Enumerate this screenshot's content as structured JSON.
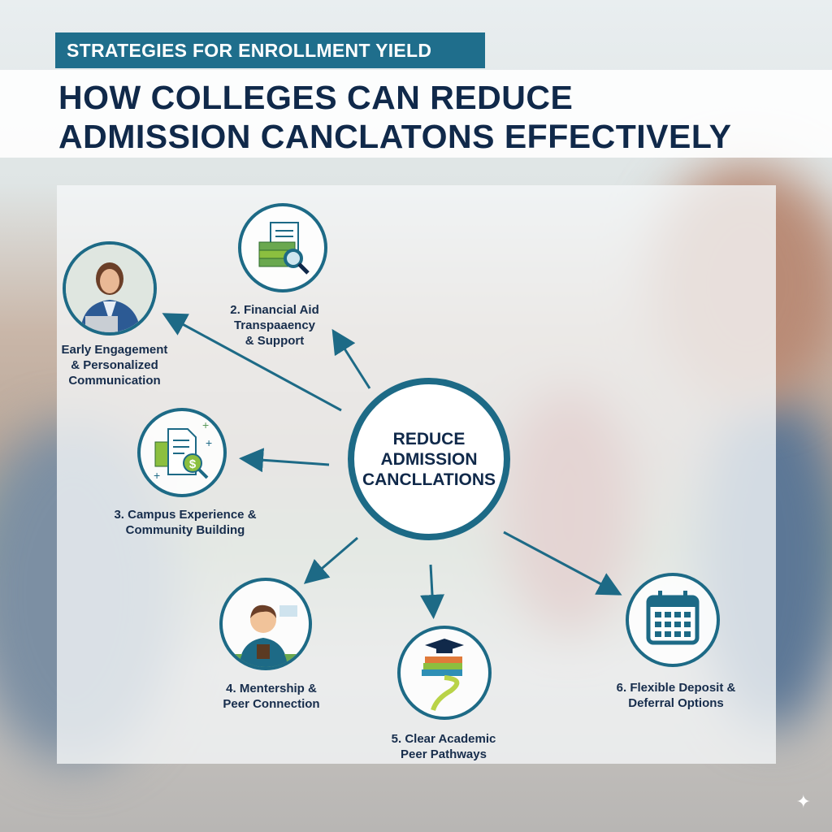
{
  "header": {
    "tag": "STRATEGIES FOR ENROLLMENT YIELD",
    "title_line1": "HOW COLLEGES CAN REDUCE",
    "title_line2": "ADMISSION CANCLATONS EFFECTIVELY"
  },
  "center": {
    "line1": "REDUCE",
    "line2": "ADMISSION",
    "line3": "CANCLLATIONS"
  },
  "nodes": [
    {
      "icon": "advisor-photo",
      "lines": [
        "Early Engagement",
        "& Personalized",
        "Communication"
      ]
    },
    {
      "icon": "money-document-magnifier-icon",
      "lines": [
        "2. Financial Aid",
        "Transpaaency",
        "& Support"
      ]
    },
    {
      "icon": "document-dollar-icon",
      "lines": [
        "3. Campus Experience &",
        "Community Building"
      ]
    },
    {
      "icon": "mentor-icon",
      "lines": [
        "4. Mentership &",
        "Peer Connection"
      ]
    },
    {
      "icon": "graduation-books-path-icon",
      "lines": [
        "5. Clear Academic",
        "Peer Pathways"
      ]
    },
    {
      "icon": "calendar-icon",
      "lines": [
        "6. Flexible Deposit &",
        "Deferral Options"
      ]
    }
  ],
  "colors": {
    "accent": "#1d6a86",
    "navy": "#10294a",
    "green": "#8cbf3f"
  }
}
